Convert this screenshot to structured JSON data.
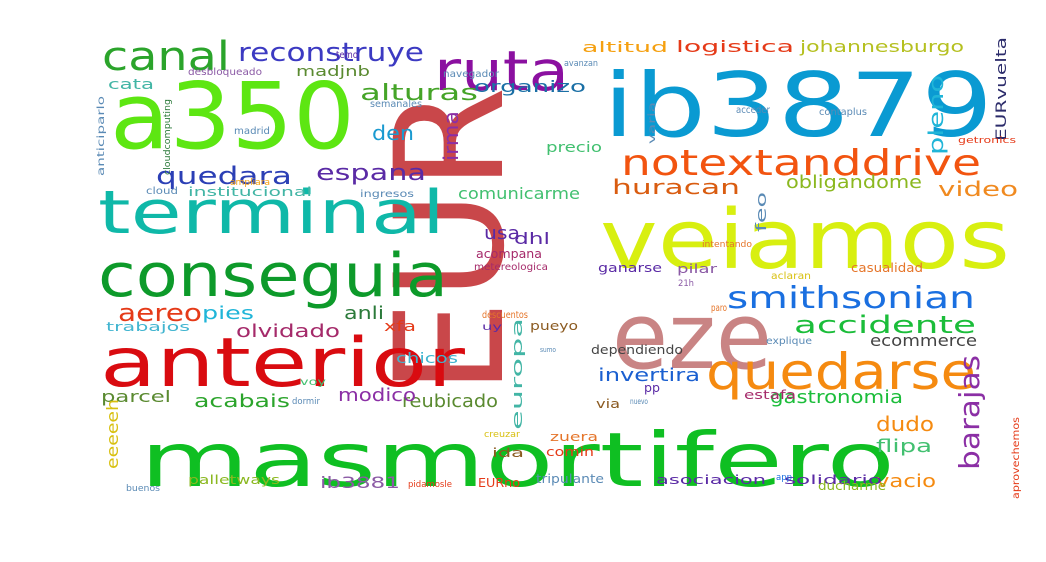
{
  "words": [
    {
      "text": "EUR",
      "color": "#c9474a"
    },
    {
      "text": "masmortifero",
      "color": "#0fbf22"
    },
    {
      "text": "veiamos",
      "color": "#d8ef10"
    },
    {
      "text": "ib3879",
      "color": "#0a9ad2"
    },
    {
      "text": "a350",
      "color": "#5de612"
    },
    {
      "text": "anterior",
      "color": "#d90b10"
    },
    {
      "text": "conseguia",
      "color": "#0d9a2a"
    },
    {
      "text": "terminal",
      "color": "#0fb8a8"
    },
    {
      "text": "eze",
      "color": "#c98484"
    },
    {
      "text": "ruta",
      "color": "#8b10a0"
    },
    {
      "text": "canal",
      "color": "#2ba42b"
    },
    {
      "text": "quedarse",
      "color": "#f58a10"
    },
    {
      "text": "notextanddrive",
      "color": "#f25410"
    },
    {
      "text": "smithsonian",
      "color": "#1a6fe0"
    },
    {
      "text": "reconstruye",
      "color": "#3c3ac2"
    },
    {
      "text": "accidente",
      "color": "#1bbd3a"
    },
    {
      "text": "barajas",
      "color": "#8b2fa5"
    },
    {
      "text": "alturas",
      "color": "#45a428"
    },
    {
      "text": "quedara",
      "color": "#2b3fb5"
    },
    {
      "text": "espana",
      "color": "#5a2aa5"
    },
    {
      "text": "huracan",
      "color": "#d95c10"
    },
    {
      "text": "video",
      "color": "#f08a20"
    },
    {
      "text": "pleno",
      "color": "#20b5d8"
    },
    {
      "text": "irma",
      "color": "#8b2fa5"
    },
    {
      "text": "aereo",
      "color": "#e53a18"
    },
    {
      "text": "den",
      "color": "#1a9ad0"
    },
    {
      "text": "obligandome",
      "color": "#8bb820"
    },
    {
      "text": "ecommerce",
      "color": "#444444"
    },
    {
      "text": "dudo",
      "color": "#f58a10"
    },
    {
      "text": "invertira",
      "color": "#1a5fd0"
    },
    {
      "text": "gastronomia",
      "color": "#1bbd3a"
    },
    {
      "text": "flipa",
      "color": "#42c070"
    },
    {
      "text": "vacio",
      "color": "#f58a10"
    },
    {
      "text": "acabais",
      "color": "#2ba42b"
    },
    {
      "text": "reubicado",
      "color": "#5a8a30"
    },
    {
      "text": "modico",
      "color": "#8b2fa5"
    },
    {
      "text": "olvidado",
      "color": "#a52a6a"
    },
    {
      "text": "pies",
      "color": "#20b5d8"
    },
    {
      "text": "anli",
      "color": "#2b7a3a"
    },
    {
      "text": "parcel",
      "color": "#5a8a30"
    },
    {
      "text": "ib3881",
      "color": "#8b5aa5"
    },
    {
      "text": "eeeeeh",
      "color": "#d8c010"
    },
    {
      "text": "organizo",
      "color": "#1a6fa5"
    },
    {
      "text": "comunicarme",
      "color": "#42c070"
    },
    {
      "text": "usa",
      "color": "#5a2aa5"
    },
    {
      "text": "dhl",
      "color": "#5a2aa5"
    },
    {
      "text": "feo",
      "color": "#5a8ab5"
    },
    {
      "text": "EURvuelta",
      "color": "#2b2b6a"
    },
    {
      "text": "logistica",
      "color": "#e53a18"
    },
    {
      "text": "altitud",
      "color": "#f5a010"
    },
    {
      "text": "johannesburgo",
      "color": "#b5c020"
    },
    {
      "text": "madjnb",
      "color": "#5a8a30"
    },
    {
      "text": "cata",
      "color": "#42b5a5"
    },
    {
      "text": "precio",
      "color": "#42c070"
    },
    {
      "text": "acompana",
      "color": "#a52a6a"
    },
    {
      "text": "xfa",
      "color": "#e53a18"
    },
    {
      "text": "trabajos",
      "color": "#42b5d0"
    },
    {
      "text": "chicos",
      "color": "#42b5d0"
    },
    {
      "text": "europa",
      "color": "#42b5a5"
    },
    {
      "text": "pueyo",
      "color": "#8b5a20"
    },
    {
      "text": "zuera",
      "color": "#e5752a"
    },
    {
      "text": "ida",
      "color": "#8b5a20"
    },
    {
      "text": "comin",
      "color": "#e53a18"
    },
    {
      "text": "EURno",
      "color": "#e53a18"
    },
    {
      "text": "tripulante",
      "color": "#5a8ab5"
    },
    {
      "text": "palletways",
      "color": "#8bb820"
    },
    {
      "text": "asociacion",
      "color": "#5a2aa5"
    },
    {
      "text": "solidario",
      "color": "#5a2aa5"
    },
    {
      "text": "estafa",
      "color": "#a52a6a"
    },
    {
      "text": "pp",
      "color": "#5a2aa5"
    },
    {
      "text": "via",
      "color": "#8b5a20"
    },
    {
      "text": "ganarse",
      "color": "#5a2aa5"
    },
    {
      "text": "pilar",
      "color": "#8b5aa5"
    },
    {
      "text": "dependiendo",
      "color": "#444444"
    },
    {
      "text": "uy",
      "color": "#5a2aa5"
    },
    {
      "text": "descuentos",
      "color": "#e5752a"
    },
    {
      "text": "metereologica",
      "color": "#a52a6a"
    },
    {
      "text": "casualidad",
      "color": "#e5752a"
    },
    {
      "text": "aclaran",
      "color": "#d8c010"
    },
    {
      "text": "paro",
      "color": "#e5752a"
    },
    {
      "text": "21h",
      "color": "#8b5aa5"
    },
    {
      "text": "explique",
      "color": "#5a8ab5"
    },
    {
      "text": "ducharme",
      "color": "#8bb820"
    },
    {
      "text": "aprovechemos",
      "color": "#e53a18"
    },
    {
      "text": "app",
      "color": "#1a6fe0"
    },
    {
      "text": "buenos",
      "color": "#5a8ab5"
    },
    {
      "text": "pidamosle",
      "color": "#e53a18"
    },
    {
      "text": "creuzar",
      "color": "#d8c010"
    },
    {
      "text": "nuevo",
      "color": "#5a8ab5"
    },
    {
      "text": "dormir",
      "color": "#5a8ab5"
    },
    {
      "text": "voy",
      "color": "#42c070"
    },
    {
      "text": "ingresos",
      "color": "#5a8ab5"
    },
    {
      "text": "institucional",
      "color": "#42b5a5"
    },
    {
      "text": "cloud",
      "color": "#5a8ab5"
    },
    {
      "text": "ampliara",
      "color": "#f5a010"
    },
    {
      "text": "madrid",
      "color": "#5a8ab5"
    },
    {
      "text": "anticiparlo",
      "color": "#5a8ab5"
    },
    {
      "text": "cloudcomputing",
      "color": "#2b7a3a"
    },
    {
      "text": "desbloqueado",
      "color": "#8b5aa5"
    },
    {
      "text": "temo",
      "color": "#5a2aa5"
    },
    {
      "text": "semanales",
      "color": "#5a8ab5"
    },
    {
      "text": "navegador",
      "color": "#5a8ab5"
    },
    {
      "text": "varia",
      "color": "#5a8ab5"
    },
    {
      "text": "acceder",
      "color": "#5a8ab5"
    },
    {
      "text": "contaplus",
      "color": "#5a8ab5"
    },
    {
      "text": "getronics",
      "color": "#e53a18"
    },
    {
      "text": "intentando",
      "color": "#e5752a"
    },
    {
      "text": "avanzan",
      "color": "#5a8ab5"
    },
    {
      "text": "sumo",
      "color": "#5a8ab5"
    }
  ]
}
